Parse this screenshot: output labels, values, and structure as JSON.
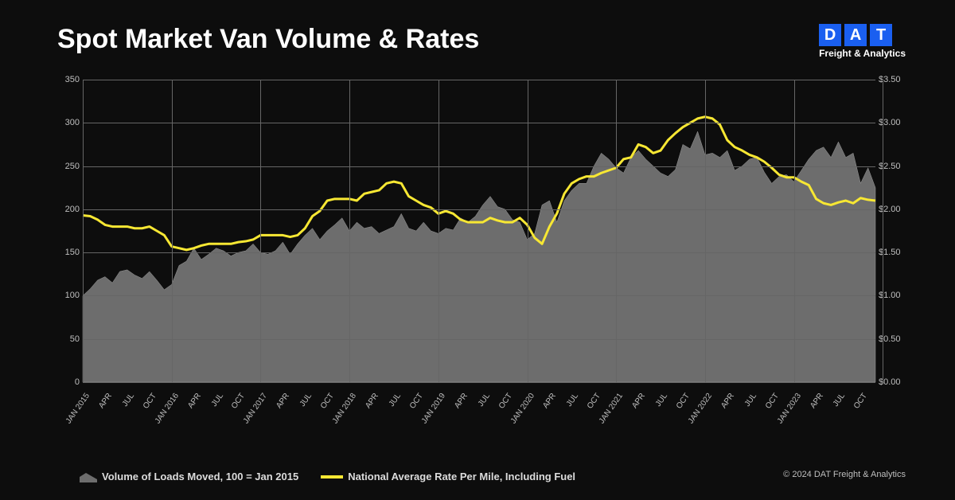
{
  "title": "Spot Market Van Volume & Rates",
  "logo": {
    "letters": [
      "D",
      "A",
      "T"
    ],
    "subtitle": "Freight & Analytics",
    "block_color": "#1a5ff0",
    "text_color": "#ffffff"
  },
  "copyright": "© 2024 DAT Freight & Analytics",
  "chart": {
    "type": "combo-area-line",
    "background_color": "#0d0d0d",
    "grid_color": "#666666",
    "axis_label_color": "#bfbfbf",
    "axis_fontsize": 11,
    "xaxis_fontsize": 10,
    "yleft": {
      "min": 0,
      "max": 350,
      "ticks": [
        0,
        50,
        100,
        150,
        200,
        250,
        300,
        350
      ]
    },
    "yright": {
      "min": 0,
      "max": 3.5,
      "ticks": [
        "$0.00",
        "$0.50",
        "$1.00",
        "$1.50",
        "$2.00",
        "$2.50",
        "$3.00",
        "$3.50"
      ]
    },
    "x_major_labels": [
      "JAN 2015",
      "APR",
      "JUL",
      "OCT",
      "JAN 2016",
      "APR",
      "JUL",
      "OCT",
      "JAN 2017",
      "APR",
      "JUL",
      "OCT",
      "JAN 2018",
      "APR",
      "JUL",
      "OCT",
      "JAN 2019",
      "APR",
      "JUL",
      "OCT",
      "JAN 2020",
      "APR",
      "JUL",
      "OCT",
      "JAN 2021",
      "APR",
      "JUL",
      "OCT",
      "JAN 2022",
      "APR",
      "JUL",
      "OCT",
      "JAN 2023",
      "APR",
      "JUL",
      "OCT"
    ],
    "x_gridline_indices": [
      0,
      4,
      8,
      12,
      16,
      20,
      24,
      28,
      32,
      36
    ],
    "area": {
      "name": "Volume of Loads Moved, 100 = Jan 2015",
      "fill": "#6d6d6d",
      "stroke": "#9a9a9a",
      "values": [
        100,
        108,
        118,
        122,
        115,
        128,
        130,
        124,
        120,
        128,
        118,
        107,
        113,
        135,
        140,
        155,
        142,
        148,
        155,
        152,
        146,
        150,
        152,
        160,
        150,
        148,
        152,
        162,
        148,
        160,
        170,
        178,
        165,
        175,
        182,
        190,
        175,
        185,
        178,
        180,
        172,
        176,
        180,
        195,
        178,
        175,
        185,
        175,
        172,
        178,
        176,
        190,
        185,
        192,
        205,
        215,
        203,
        200,
        188,
        185,
        165,
        172,
        205,
        210,
        185,
        210,
        222,
        230,
        230,
        250,
        265,
        258,
        248,
        242,
        260,
        268,
        258,
        250,
        242,
        238,
        246,
        275,
        270,
        290,
        263,
        265,
        260,
        268,
        245,
        250,
        258,
        260,
        243,
        230,
        238,
        240,
        232,
        245,
        258,
        268,
        272,
        260,
        278,
        260,
        265,
        230,
        248,
        225
      ]
    },
    "line": {
      "name": "National Average Rate Per Mile, Including Fuel",
      "color": "#f7e733",
      "width": 3,
      "values": [
        1.93,
        1.92,
        1.88,
        1.82,
        1.8,
        1.8,
        1.8,
        1.78,
        1.78,
        1.8,
        1.75,
        1.7,
        1.57,
        1.55,
        1.53,
        1.55,
        1.58,
        1.6,
        1.6,
        1.6,
        1.6,
        1.62,
        1.63,
        1.65,
        1.7,
        1.7,
        1.7,
        1.7,
        1.68,
        1.7,
        1.78,
        1.92,
        1.98,
        2.1,
        2.12,
        2.12,
        2.12,
        2.1,
        2.18,
        2.2,
        2.22,
        2.3,
        2.32,
        2.3,
        2.15,
        2.1,
        2.05,
        2.02,
        1.95,
        1.98,
        1.95,
        1.88,
        1.85,
        1.85,
        1.85,
        1.9,
        1.87,
        1.85,
        1.85,
        1.9,
        1.82,
        1.67,
        1.6,
        1.8,
        1.95,
        2.18,
        2.3,
        2.35,
        2.38,
        2.38,
        2.42,
        2.45,
        2.48,
        2.58,
        2.6,
        2.75,
        2.72,
        2.65,
        2.68,
        2.8,
        2.88,
        2.95,
        3.0,
        3.05,
        3.07,
        3.05,
        2.98,
        2.8,
        2.72,
        2.68,
        2.63,
        2.6,
        2.55,
        2.48,
        2.4,
        2.37,
        2.37,
        2.32,
        2.28,
        2.12,
        2.07,
        2.05,
        2.08,
        2.1,
        2.07,
        2.13,
        2.11,
        2.1
      ]
    },
    "legend": {
      "items": [
        {
          "type": "area",
          "label": "Volume of Loads Moved, 100 = Jan 2015",
          "fill": "#6d6d6d"
        },
        {
          "type": "line",
          "label": "National Average Rate Per Mile, Including Fuel",
          "color": "#f7e733"
        }
      ],
      "text_color": "#dcdcdc",
      "fontsize": 13
    }
  }
}
